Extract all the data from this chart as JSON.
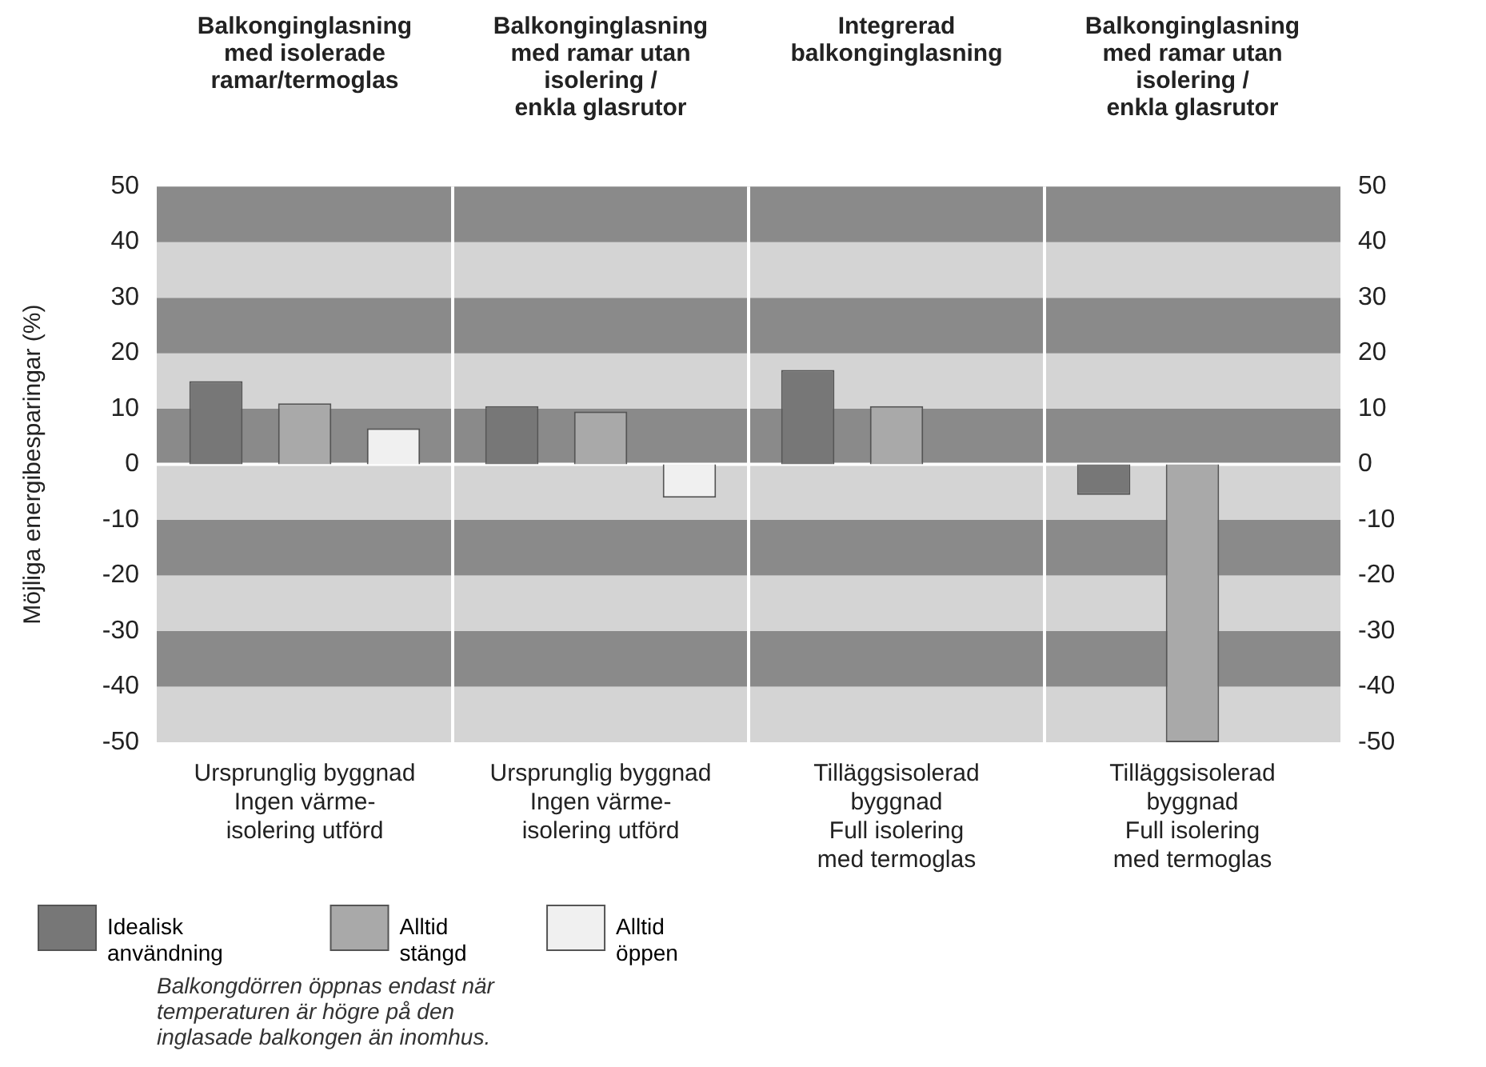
{
  "chart_data": {
    "type": "bar",
    "ylabel": "Möjliga energibesparingar (%)",
    "categories": [
      "Ursprunglig byggnad\nIngen värme-\nisolering utförd",
      "Ursprunglig byggnad\nIngen värme-\nisolering utförd",
      "Tilläggsisolerad\nbyggnad\nFull isolering\nmed termoglas",
      "Tilläggsisolerad\nbyggnad\nFull isolering\nmed termoglas"
    ],
    "series": [
      {
        "name": "Idealisk\nanvändning",
        "color": "#777777",
        "values": [
          15,
          10.5,
          17,
          -5.5
        ]
      },
      {
        "name": "Alltid\nstängd",
        "color": "#a9a9a9",
        "values": [
          11,
          9.5,
          10.5,
          -50
        ]
      },
      {
        "name": "Alltid\nöppen",
        "color": "#f0f0f0",
        "values": [
          6.5,
          -6,
          null,
          null
        ]
      }
    ],
    "ylim": [
      -50,
      50
    ],
    "yticks": [
      -50,
      -40,
      -30,
      -20,
      -10,
      0,
      10,
      20,
      30,
      40,
      50
    ],
    "y2lim": [
      -50,
      50
    ],
    "y2ticks": [
      -50,
      -40,
      -30,
      -20,
      -10,
      0,
      10,
      20,
      30,
      40,
      50
    ],
    "grid": true,
    "legend": "bottom",
    "annotations": [
      "Balkonginglasning\nmed isolerade\nramar/termoglas",
      "Balkonginglasning\nmed ramar utan\nisolering /\nenkla glasrutor",
      "Integrerad\nbalkonginglasning",
      "Balkonginglasning\nmed ramar utan\nisolering /\nenkla glasrutor",
      "Balkongdörren öppnas endast när\ntemperaturen är högre på den\ninglasade balkongen än inomhus."
    ]
  }
}
